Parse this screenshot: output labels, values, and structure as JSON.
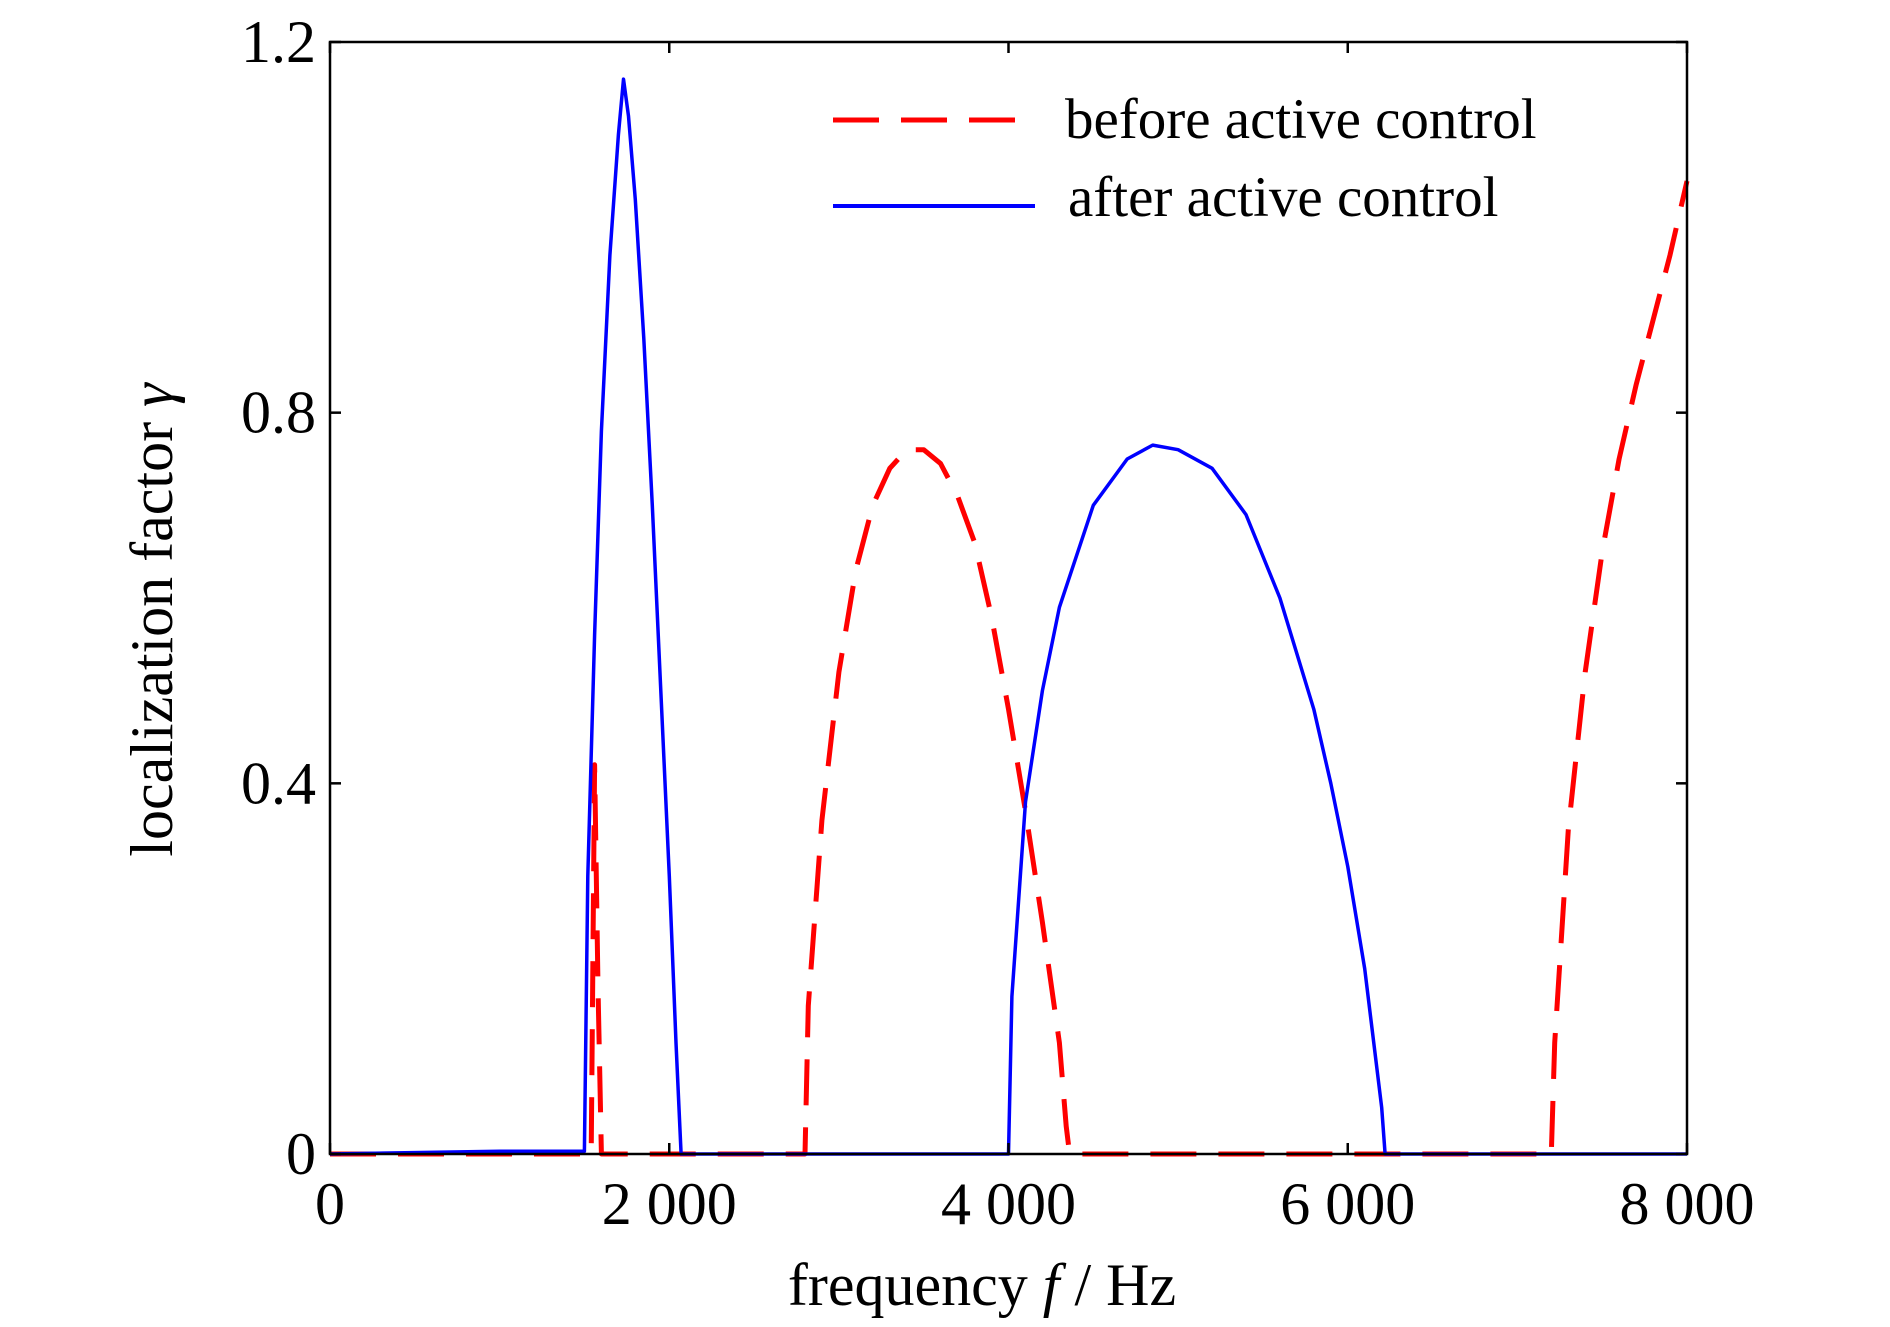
{
  "chart_data": {
    "type": "line",
    "xlabel": {
      "prefix": "frequency ",
      "var": "f",
      "suffix": " / Hz"
    },
    "ylabel": {
      "prefix": "localization factor ",
      "var": "γ"
    },
    "xlim": [
      0,
      8000
    ],
    "ylim": [
      0,
      1.2
    ],
    "xticks": [
      0,
      2000,
      4000,
      6000,
      8000
    ],
    "xtick_labels": [
      "0",
      "2 000",
      "4 000",
      "6 000",
      "8 000"
    ],
    "yticks": [
      0,
      0.4,
      0.8,
      1.2
    ],
    "ytick_labels": [
      "0",
      "0.4",
      "0.8",
      "1.2"
    ],
    "grid": false,
    "legend_position": "top-right",
    "series": [
      {
        "name": "before active control",
        "color": "#ff0000",
        "style": "dashed",
        "points": [
          [
            0,
            0
          ],
          [
            1540,
            0
          ],
          [
            1560,
            0.42
          ],
          [
            1580,
            0.18
          ],
          [
            1600,
            0
          ],
          [
            2800,
            0
          ],
          [
            2820,
            0.16
          ],
          [
            2900,
            0.36
          ],
          [
            3000,
            0.52
          ],
          [
            3100,
            0.63
          ],
          [
            3200,
            0.7
          ],
          [
            3300,
            0.74
          ],
          [
            3400,
            0.76
          ],
          [
            3500,
            0.76
          ],
          [
            3600,
            0.745
          ],
          [
            3700,
            0.71
          ],
          [
            3800,
            0.66
          ],
          [
            3900,
            0.58
          ],
          [
            4000,
            0.48
          ],
          [
            4100,
            0.37
          ],
          [
            4200,
            0.25
          ],
          [
            4300,
            0.12
          ],
          [
            4340,
            0.03
          ],
          [
            4360,
            0
          ],
          [
            7200,
            0
          ],
          [
            7220,
            0.12
          ],
          [
            7300,
            0.35
          ],
          [
            7400,
            0.52
          ],
          [
            7500,
            0.65
          ],
          [
            7600,
            0.75
          ],
          [
            7700,
            0.83
          ],
          [
            7800,
            0.9
          ],
          [
            7900,
            0.97
          ],
          [
            8000,
            1.05
          ]
        ]
      },
      {
        "name": "after active control",
        "color": "#0000ff",
        "style": "solid",
        "points": [
          [
            0,
            0
          ],
          [
            1000,
            0.003
          ],
          [
            1500,
            0.003
          ],
          [
            1520,
            0.3
          ],
          [
            1560,
            0.56
          ],
          [
            1600,
            0.78
          ],
          [
            1650,
            0.97
          ],
          [
            1700,
            1.1
          ],
          [
            1730,
            1.16
          ],
          [
            1760,
            1.12
          ],
          [
            1800,
            1.03
          ],
          [
            1850,
            0.88
          ],
          [
            1900,
            0.7
          ],
          [
            1950,
            0.5
          ],
          [
            2000,
            0.3
          ],
          [
            2040,
            0.12
          ],
          [
            2070,
            0
          ],
          [
            4000,
            0
          ],
          [
            4020,
            0.17
          ],
          [
            4100,
            0.38
          ],
          [
            4200,
            0.5
          ],
          [
            4300,
            0.59
          ],
          [
            4500,
            0.7
          ],
          [
            4700,
            0.75
          ],
          [
            4850,
            0.765
          ],
          [
            5000,
            0.76
          ],
          [
            5200,
            0.74
          ],
          [
            5400,
            0.69
          ],
          [
            5600,
            0.6
          ],
          [
            5800,
            0.48
          ],
          [
            5900,
            0.4
          ],
          [
            6000,
            0.31
          ],
          [
            6100,
            0.2
          ],
          [
            6200,
            0.05
          ],
          [
            6220,
            0
          ],
          [
            8000,
            0
          ]
        ]
      }
    ]
  }
}
